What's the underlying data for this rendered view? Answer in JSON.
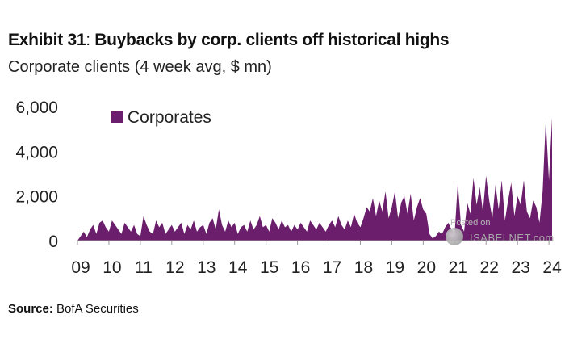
{
  "header": {
    "title_prefix": "Exhibit 31",
    "title_main": "Buybacks by corp. clients off historical highs",
    "subtitle": "Corporate clients (4 week avg, $ mn)"
  },
  "footer": {
    "source_label": "Source:",
    "source_text": "BofA Securities"
  },
  "watermark": {
    "line1": "Posted on",
    "line2": "ISABELNET.com"
  },
  "colors": {
    "area": "#6b1e6b",
    "legend_swatch": "#6b1e6b",
    "axis": "#999999"
  },
  "chart_data": {
    "type": "area",
    "title": "Exhibit 31: Buybacks by corp. clients off historical highs",
    "subtitle": "Corporate clients (4 week avg, $ mn)",
    "ylim": [
      0,
      6000
    ],
    "yticks": [
      0,
      2000,
      4000,
      6000
    ],
    "ytick_labels": [
      "0",
      "2,000",
      "4,000",
      "6,000"
    ],
    "xlim": [
      2009.0,
      2024.1
    ],
    "xticks": [
      2009,
      2010,
      2011,
      2012,
      2013,
      2014,
      2015,
      2016,
      2017,
      2018,
      2019,
      2020,
      2021,
      2022,
      2023,
      2024
    ],
    "xtick_labels": [
      "09",
      "10",
      "11",
      "12",
      "13",
      "14",
      "15",
      "16",
      "17",
      "18",
      "19",
      "20",
      "21",
      "22",
      "23",
      "24"
    ],
    "legend": {
      "position": "top-left",
      "entries": [
        "Corporates"
      ]
    },
    "grid": false,
    "series": [
      {
        "name": "Corporates",
        "x": [
          2009.0,
          2009.1,
          2009.2,
          2009.3,
          2009.4,
          2009.5,
          2009.6,
          2009.7,
          2009.8,
          2009.9,
          2010.0,
          2010.1,
          2010.2,
          2010.3,
          2010.4,
          2010.5,
          2010.6,
          2010.7,
          2010.8,
          2010.9,
          2011.0,
          2011.1,
          2011.2,
          2011.3,
          2011.4,
          2011.5,
          2011.6,
          2011.7,
          2011.8,
          2011.9,
          2012.0,
          2012.1,
          2012.2,
          2012.3,
          2012.4,
          2012.5,
          2012.6,
          2012.7,
          2012.8,
          2012.9,
          2013.0,
          2013.1,
          2013.2,
          2013.3,
          2013.4,
          2013.5,
          2013.6,
          2013.7,
          2013.8,
          2013.9,
          2014.0,
          2014.1,
          2014.2,
          2014.3,
          2014.4,
          2014.5,
          2014.6,
          2014.7,
          2014.8,
          2014.9,
          2015.0,
          2015.1,
          2015.2,
          2015.3,
          2015.4,
          2015.5,
          2015.6,
          2015.7,
          2015.8,
          2015.9,
          2016.0,
          2016.1,
          2016.2,
          2016.3,
          2016.4,
          2016.5,
          2016.6,
          2016.7,
          2016.8,
          2016.9,
          2017.0,
          2017.1,
          2017.2,
          2017.3,
          2017.4,
          2017.5,
          2017.6,
          2017.7,
          2017.8,
          2017.9,
          2018.0,
          2018.1,
          2018.2,
          2018.3,
          2018.4,
          2018.5,
          2018.6,
          2018.7,
          2018.8,
          2018.9,
          2019.0,
          2019.1,
          2019.2,
          2019.3,
          2019.4,
          2019.5,
          2019.6,
          2019.7,
          2019.8,
          2019.9,
          2020.0,
          2020.1,
          2020.2,
          2020.3,
          2020.4,
          2020.5,
          2020.6,
          2020.7,
          2020.8,
          2020.9,
          2021.0,
          2021.1,
          2021.2,
          2021.3,
          2021.4,
          2021.5,
          2021.6,
          2021.7,
          2021.8,
          2021.9,
          2022.0,
          2022.1,
          2022.2,
          2022.3,
          2022.4,
          2022.5,
          2022.6,
          2022.7,
          2022.8,
          2022.9,
          2023.0,
          2023.1,
          2023.2,
          2023.3,
          2023.4,
          2023.5,
          2023.6,
          2023.7,
          2023.8,
          2023.9,
          2024.0,
          2024.1
        ],
        "values": [
          0,
          200,
          400,
          150,
          500,
          700,
          300,
          800,
          900,
          600,
          400,
          900,
          700,
          500,
          300,
          800,
          600,
          400,
          700,
          300,
          200,
          1100,
          700,
          400,
          300,
          900,
          600,
          800,
          300,
          500,
          700,
          400,
          600,
          800,
          300,
          700,
          500,
          900,
          400,
          600,
          700,
          300,
          800,
          1000,
          500,
          1400,
          700,
          400,
          900,
          600,
          800,
          300,
          600,
          700,
          400,
          900,
          500,
          700,
          1100,
          600,
          700,
          400,
          1000,
          800,
          500,
          900,
          600,
          700,
          400,
          700,
          500,
          800,
          600,
          400,
          900,
          700,
          500,
          800,
          600,
          400,
          700,
          900,
          600,
          1100,
          700,
          500,
          900,
          600,
          1200,
          800,
          600,
          1000,
          1500,
          1300,
          1900,
          1100,
          1800,
          1300,
          2200,
          1000,
          1500,
          2200,
          1000,
          1700,
          2000,
          1200,
          2100,
          900,
          1500,
          1900,
          1400,
          1200,
          300,
          100,
          200,
          400,
          300,
          600,
          800,
          500,
          300,
          2600,
          700,
          400,
          1700,
          1200,
          2800,
          1600,
          2400,
          1300,
          2900,
          1800,
          1000,
          2500,
          1400,
          2700,
          900,
          1800,
          2600,
          1100,
          2000,
          1600,
          2700,
          1300,
          1000,
          1800,
          1500,
          800,
          2200,
          5400,
          2700,
          5500
        ]
      }
    ]
  }
}
